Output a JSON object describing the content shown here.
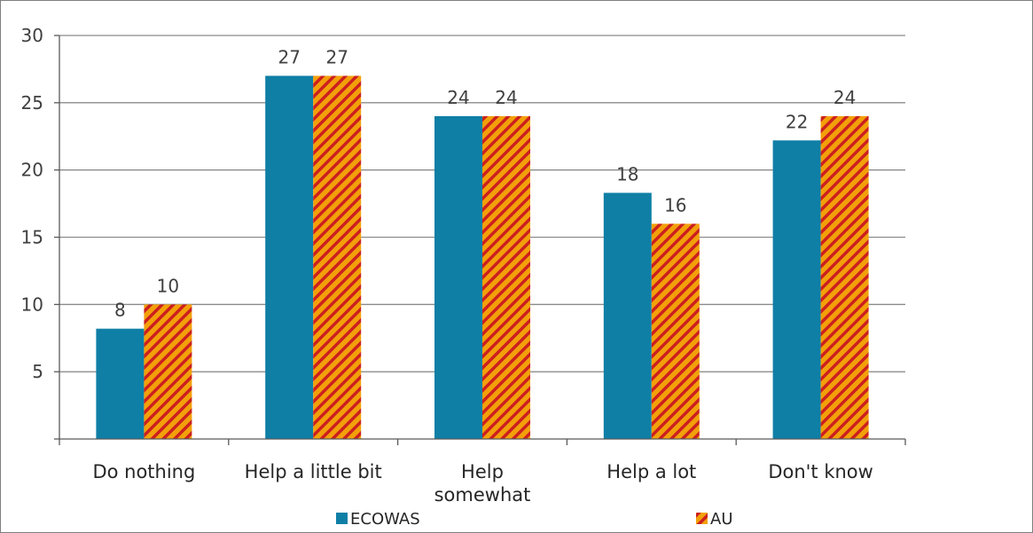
{
  "chart_data": {
    "type": "bar",
    "categories": [
      "Do nothing",
      "Help a little bit",
      "Help somewhat",
      "Help a lot",
      "Don't know"
    ],
    "category_lines": [
      [
        "Do nothing"
      ],
      [
        "Help a little bit"
      ],
      [
        "Help",
        "somewhat"
      ],
      [
        "Help a lot"
      ],
      [
        "Don't know"
      ]
    ],
    "series": [
      {
        "name": "ECOWAS",
        "values": [
          8.2,
          27,
          24,
          18.3,
          22.2
        ],
        "labels": [
          "8",
          "27",
          "24",
          "18",
          "22"
        ],
        "color": "#0f7fa6",
        "pattern": "solid"
      },
      {
        "name": "AU",
        "values": [
          10,
          27,
          24,
          16,
          24
        ],
        "labels": [
          "10",
          "27",
          "24",
          "16",
          "24"
        ],
        "color": "#f2a00a",
        "stripe_color": "#cc1f1f",
        "pattern": "diagonal-stripes"
      }
    ],
    "yticks": [
      "5",
      "10",
      "15",
      "20",
      "25",
      "30"
    ],
    "ylim": [
      0,
      30
    ],
    "grid": true,
    "legend_position": "bottom",
    "title": "",
    "xlabel": "",
    "ylabel": ""
  }
}
